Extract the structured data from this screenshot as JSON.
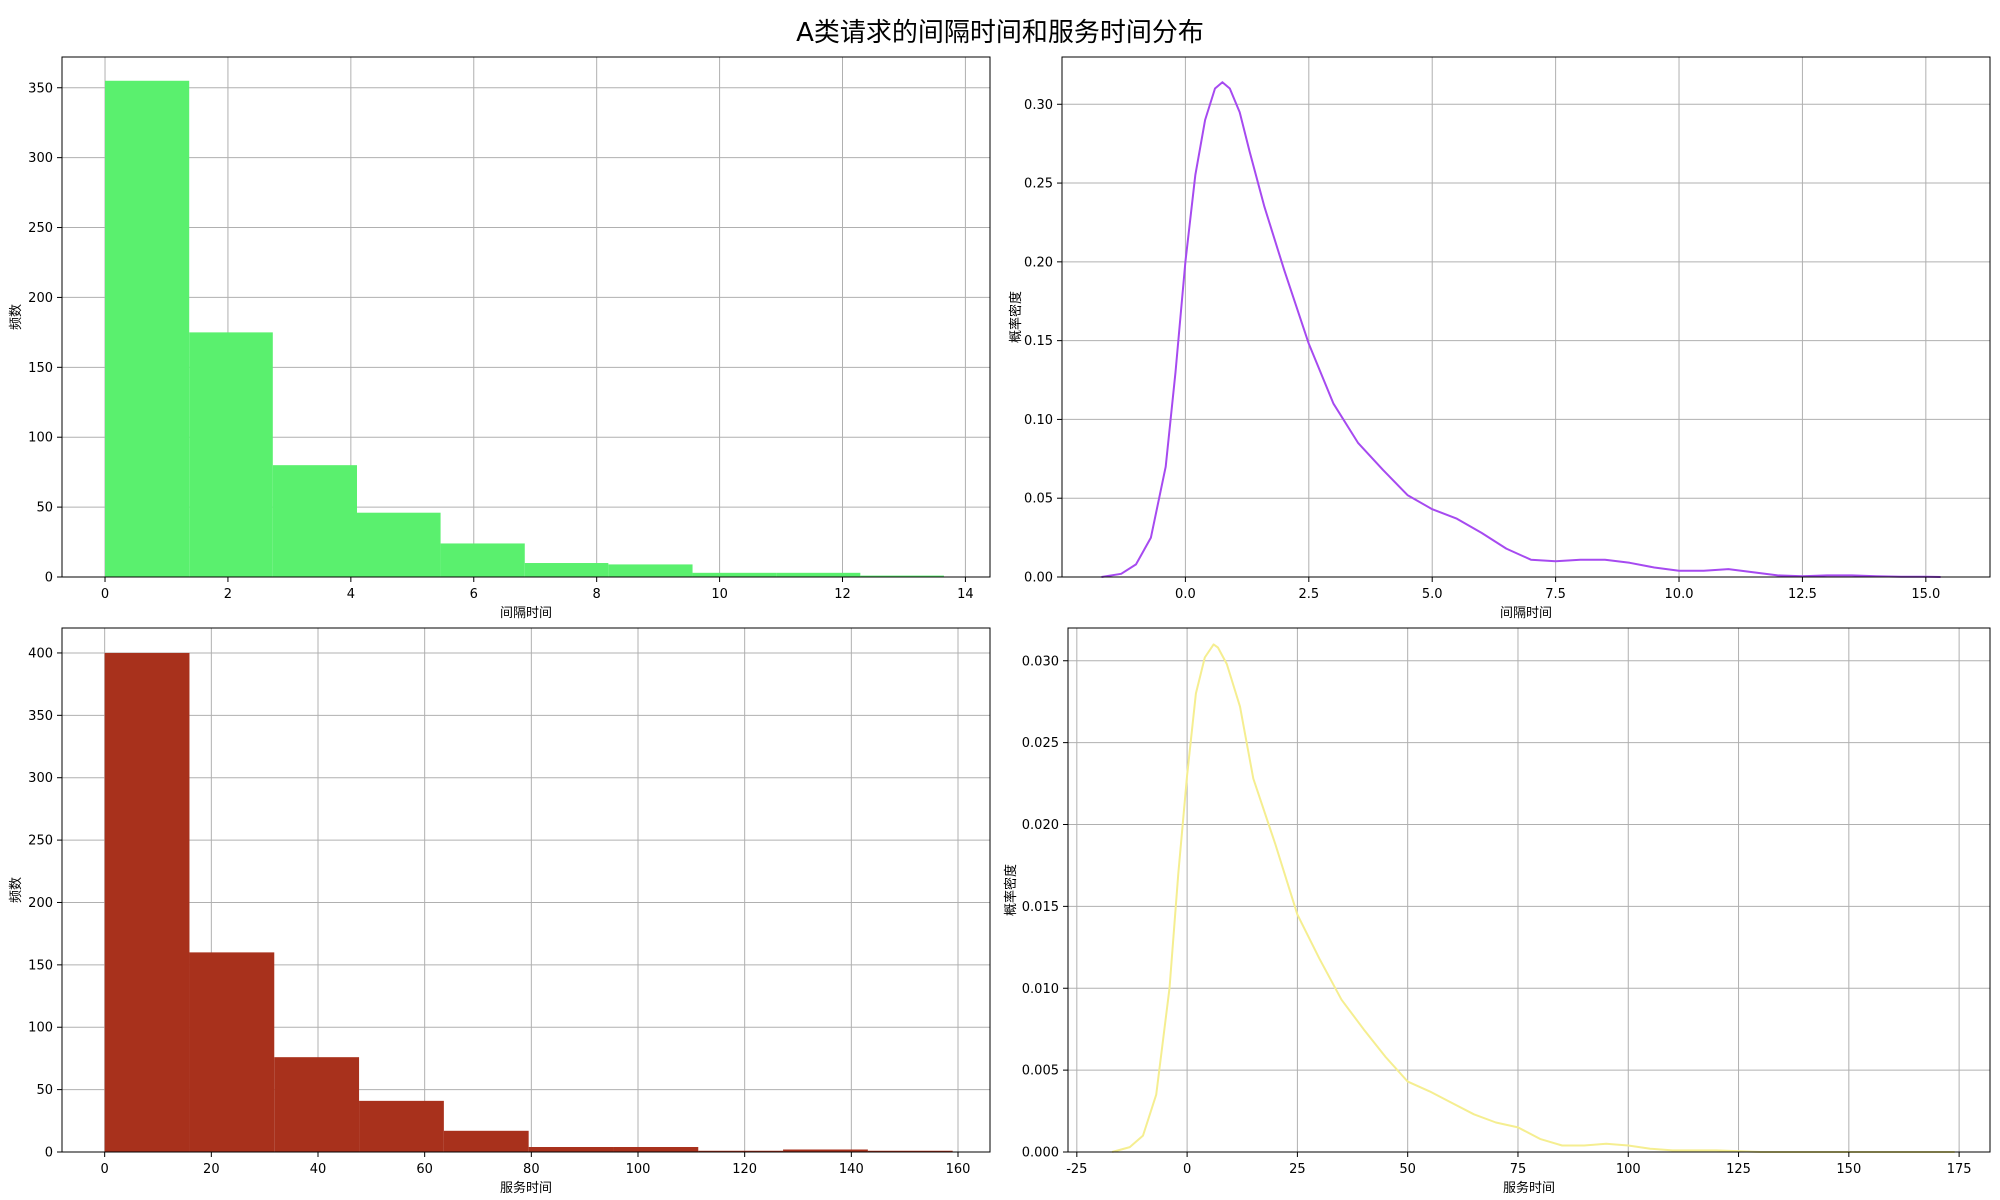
{
  "figure": {
    "title": "A类请求的间隔时间和服务时间分布"
  },
  "chart_data": [
    {
      "type": "bar",
      "subtype": "histogram",
      "xlabel": "间隔时间",
      "ylabel": "频数",
      "color": "#5af06e",
      "xlim": [
        -0.7,
        14.4
      ],
      "ylim": [
        0,
        372
      ],
      "xticks": [
        0,
        2,
        4,
        6,
        8,
        10,
        12,
        14
      ],
      "yticks": [
        0,
        50,
        100,
        150,
        200,
        250,
        300,
        350
      ],
      "bin_edges": [
        0,
        1.37,
        2.73,
        4.1,
        5.46,
        6.83,
        8.19,
        9.56,
        10.92,
        12.29,
        13.65
      ],
      "values": [
        355,
        175,
        80,
        46,
        24,
        10,
        9,
        3,
        3,
        1
      ],
      "grid": true
    },
    {
      "type": "line",
      "subtype": "kde",
      "xlabel": "间隔时间",
      "ylabel": "概率密度",
      "color": "#a64af0",
      "xlim": [
        -2.5,
        16.3
      ],
      "ylim": [
        0,
        0.33
      ],
      "xticks": [
        0.0,
        2.5,
        5.0,
        7.5,
        10.0,
        12.5,
        15.0
      ],
      "xtick_labels": [
        "0.0",
        "2.5",
        "5.0",
        "7.5",
        "10.0",
        "12.5",
        "15.0"
      ],
      "yticks": [
        0,
        0.05,
        0.1,
        0.15,
        0.2,
        0.25,
        0.3
      ],
      "ytick_labels": [
        "0.00",
        "0.05",
        "0.10",
        "0.15",
        "0.20",
        "0.25",
        "0.30"
      ],
      "x": [
        -1.7,
        -1.3,
        -1.0,
        -0.7,
        -0.4,
        -0.2,
        0.0,
        0.2,
        0.4,
        0.6,
        0.75,
        0.9,
        1.1,
        1.3,
        1.6,
        2.0,
        2.5,
        3.0,
        3.5,
        4.0,
        4.5,
        5.0,
        5.5,
        6.0,
        6.5,
        7.0,
        7.5,
        8.0,
        8.5,
        9.0,
        9.5,
        10.0,
        10.5,
        11.0,
        11.5,
        12.0,
        12.5,
        13.0,
        13.5,
        14.0,
        14.5,
        15.0,
        15.3
      ],
      "y": [
        0.0,
        0.002,
        0.008,
        0.025,
        0.07,
        0.13,
        0.2,
        0.255,
        0.29,
        0.31,
        0.314,
        0.31,
        0.295,
        0.27,
        0.235,
        0.195,
        0.148,
        0.11,
        0.085,
        0.068,
        0.052,
        0.043,
        0.037,
        0.028,
        0.018,
        0.011,
        0.01,
        0.011,
        0.011,
        0.009,
        0.006,
        0.004,
        0.004,
        0.005,
        0.003,
        0.001,
        0.0005,
        0.001,
        0.001,
        0.0005,
        0.0002,
        0.0001,
        0.0
      ],
      "grid": true
    },
    {
      "type": "bar",
      "subtype": "histogram",
      "xlabel": "服务时间",
      "ylabel": "频数",
      "color": "#a8311c",
      "xlim": [
        -8,
        166
      ],
      "ylim": [
        0,
        420
      ],
      "xticks": [
        0,
        20,
        40,
        60,
        80,
        100,
        120,
        140,
        160
      ],
      "yticks": [
        0,
        50,
        100,
        150,
        200,
        250,
        300,
        350,
        400
      ],
      "bin_edges": [
        0,
        15.9,
        31.8,
        47.7,
        63.6,
        79.5,
        95.4,
        111.3,
        127.2,
        143.1,
        159
      ],
      "values": [
        400,
        160,
        76,
        41,
        17,
        4,
        4,
        1,
        2,
        1
      ],
      "grid": true
    },
    {
      "type": "line",
      "subtype": "kde",
      "xlabel": "服务时间",
      "ylabel": "概率密度",
      "color": "#f5ee90",
      "xlim": [
        -27,
        182
      ],
      "ylim": [
        0,
        0.032
      ],
      "xticks": [
        -25,
        0,
        25,
        50,
        75,
        100,
        125,
        150,
        175
      ],
      "xtick_labels": [
        "-25",
        "0",
        "25",
        "50",
        "75",
        "100",
        "125",
        "150",
        "175"
      ],
      "yticks": [
        0,
        0.005,
        0.01,
        0.015,
        0.02,
        0.025,
        0.03
      ],
      "ytick_labels": [
        "0.000",
        "0.005",
        "0.010",
        "0.015",
        "0.020",
        "0.025",
        "0.030"
      ],
      "x": [
        -17,
        -13,
        -10,
        -7,
        -4,
        -2,
        0,
        2,
        4,
        6,
        7,
        9,
        12,
        15,
        20,
        25,
        30,
        35,
        40,
        45,
        50,
        55,
        60,
        65,
        70,
        75,
        80,
        85,
        90,
        95,
        100,
        105,
        110,
        120,
        130,
        140,
        150,
        160,
        170,
        174
      ],
      "y": [
        0.0,
        0.0003,
        0.001,
        0.0035,
        0.01,
        0.017,
        0.023,
        0.028,
        0.0302,
        0.031,
        0.0308,
        0.0298,
        0.0272,
        0.0228,
        0.0188,
        0.0145,
        0.0118,
        0.0093,
        0.0075,
        0.0058,
        0.0043,
        0.0037,
        0.003,
        0.0023,
        0.0018,
        0.0015,
        0.0008,
        0.0004,
        0.0004,
        0.0005,
        0.0004,
        0.0002,
        0.0001,
        0.0001,
        0.0,
        0.0,
        0.0,
        0.0,
        0.0,
        0.0
      ],
      "grid": true
    }
  ]
}
